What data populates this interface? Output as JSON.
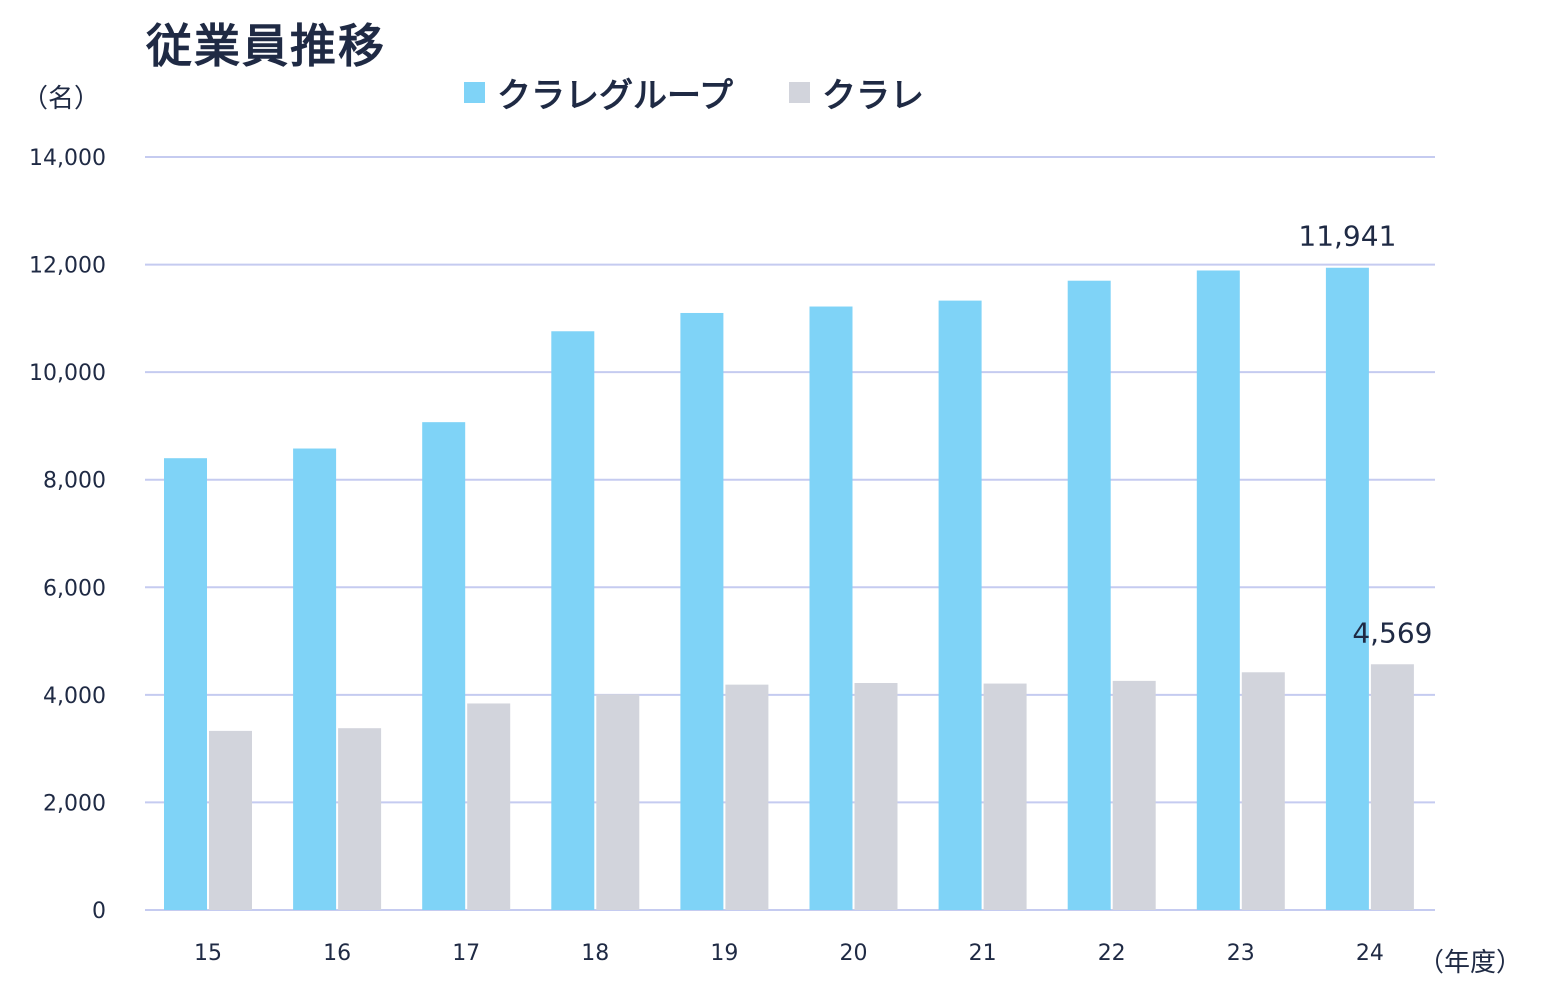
{
  "chart_data": {
    "type": "bar",
    "title": "従業員推移",
    "ylabel": "（名）",
    "xlabel": "（年度）",
    "ylim": [
      0,
      14000
    ],
    "yticks": [
      0,
      2000,
      4000,
      6000,
      8000,
      10000,
      12000,
      14000
    ],
    "ytick_labels": [
      "0",
      "2,000",
      "4,000",
      "6,000",
      "8,000",
      "10,000",
      "12,000",
      "14,000"
    ],
    "categories": [
      "15",
      "16",
      "17",
      "18",
      "19",
      "20",
      "21",
      "22",
      "23",
      "24"
    ],
    "series": [
      {
        "name": "クラレグループ",
        "color": "#7fd3f7",
        "values": [
          8400,
          8580,
          9070,
          10760,
          11100,
          11220,
          11330,
          11700,
          11890,
          11941
        ]
      },
      {
        "name": "クラレ",
        "color": "#d2d4dc",
        "values": [
          3330,
          3380,
          3840,
          4010,
          4190,
          4220,
          4210,
          4260,
          4420,
          4569
        ]
      }
    ],
    "annotations": [
      {
        "series": 0,
        "index": 9,
        "text": "11,941"
      },
      {
        "series": 1,
        "index": 9,
        "text": "4,569"
      }
    ],
    "grid": true,
    "legend": "top-center",
    "gridline_color": "#c5cbf0"
  }
}
